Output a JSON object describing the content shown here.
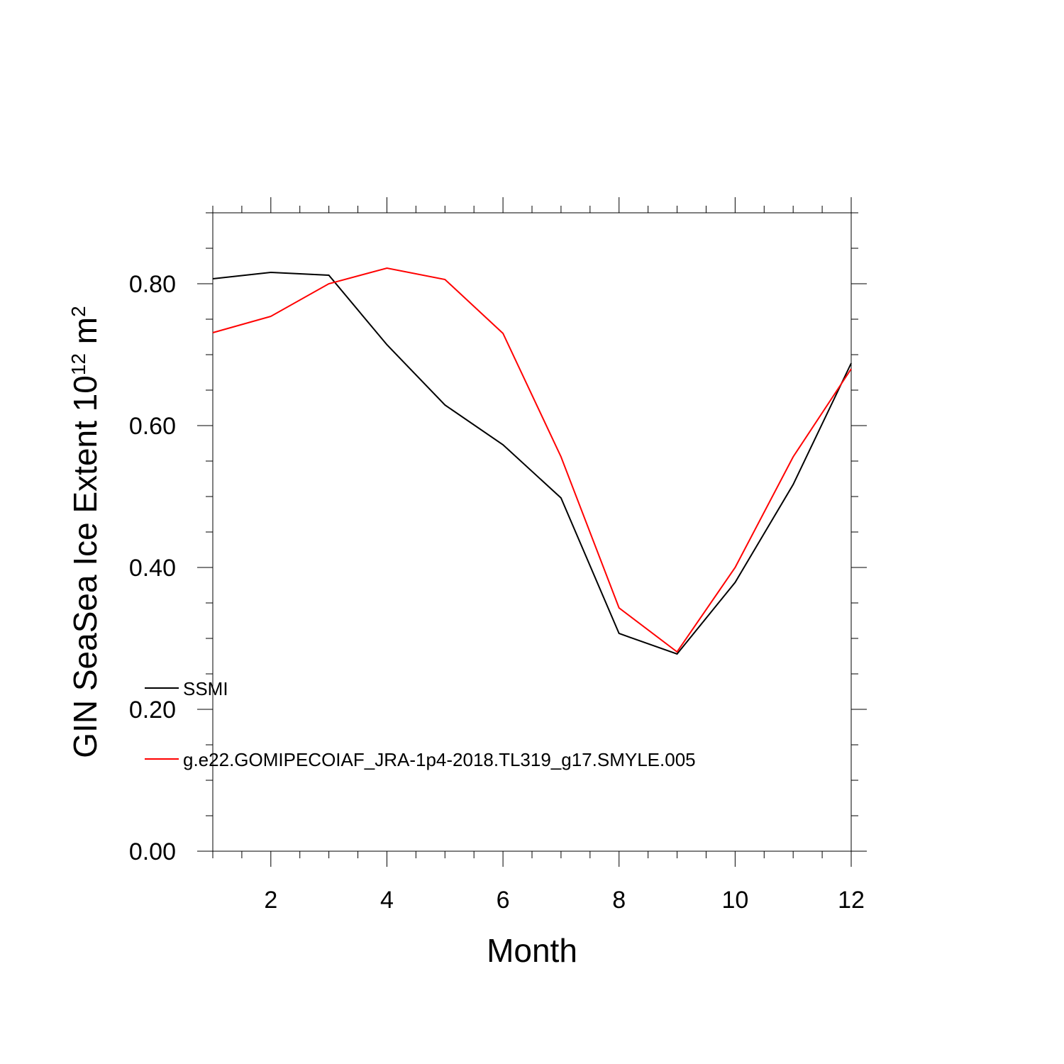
{
  "chart_data": {
    "type": "line",
    "xlabel": "Month",
    "ylabel": {
      "base": "GIN SeaSea Ice Extent 10",
      "exponent": "12",
      "unit": " m",
      "unit_exponent": "2"
    },
    "xlim": [
      1,
      12
    ],
    "ylim": [
      0,
      0.9
    ],
    "x_ticks": [
      2,
      4,
      6,
      8,
      10,
      12
    ],
    "x_tick_labels": [
      "2",
      "4",
      "6",
      "8",
      "10",
      "12"
    ],
    "y_ticks": [
      0,
      0.2,
      0.4,
      0.6,
      0.8
    ],
    "y_tick_labels": [
      "0.00",
      "0.20",
      "0.40",
      "0.60",
      "0.80"
    ],
    "grid": false,
    "legend_position": "lower-left",
    "x": [
      1,
      2,
      3,
      4,
      5,
      6,
      7,
      8,
      9,
      10,
      11,
      12
    ],
    "series": [
      {
        "name": "SSMI",
        "color": "#000000",
        "values": [
          0.807,
          0.816,
          0.812,
          0.714,
          0.629,
          0.573,
          0.498,
          0.307,
          0.278,
          0.379,
          0.517,
          0.688
        ]
      },
      {
        "name": "g.e22.GOMIPECOIAF_JRA-1p4-2018.TL319_g17.SMYLE.005",
        "color": "#ff0000",
        "values": [
          0.731,
          0.754,
          0.8,
          0.822,
          0.806,
          0.73,
          0.556,
          0.343,
          0.281,
          0.4,
          0.556,
          0.68
        ]
      }
    ]
  }
}
